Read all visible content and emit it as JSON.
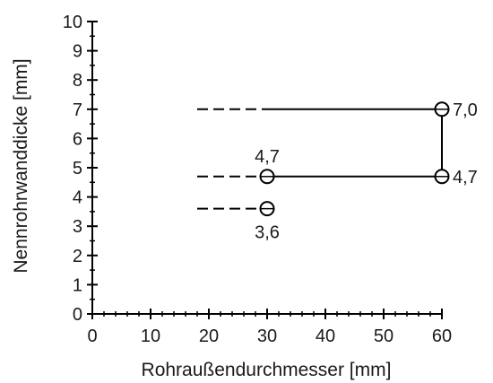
{
  "chart_data": {
    "type": "line",
    "xlabel": "Rohraußendurchmesser [mm]",
    "ylabel": "Nennrohrwanddicke [mm]",
    "xlim": [
      0,
      60
    ],
    "ylim": [
      0,
      10
    ],
    "x_ticks": [
      "0",
      "10",
      "20",
      "30",
      "40",
      "50",
      "60"
    ],
    "y_ticks": [
      "0",
      "1",
      "2",
      "3",
      "4",
      "5",
      "6",
      "7",
      "8",
      "9",
      "10"
    ],
    "grid": false,
    "points": [
      {
        "x": 30,
        "y": 3.6,
        "label": "3,6"
      },
      {
        "x": 30,
        "y": 4.7,
        "label": "4,7"
      },
      {
        "x": 60,
        "y": 4.7,
        "label": "4,7"
      },
      {
        "x": 60,
        "y": 7.0,
        "label": "7,0"
      }
    ],
    "solid_segments": [
      {
        "from": [
          30,
          4.7
        ],
        "to": [
          60,
          4.7
        ]
      },
      {
        "from": [
          60,
          4.7
        ],
        "to": [
          60,
          7.0
        ]
      },
      {
        "from": [
          30,
          7.0
        ],
        "to": [
          60,
          7.0
        ]
      }
    ],
    "dashed_segments": [
      {
        "from": [
          18,
          7.0
        ],
        "to": [
          30,
          7.0
        ]
      },
      {
        "from": [
          18,
          4.7
        ],
        "to": [
          30,
          4.7
        ]
      },
      {
        "from": [
          18,
          3.6
        ],
        "to": [
          30,
          3.6
        ]
      }
    ]
  }
}
